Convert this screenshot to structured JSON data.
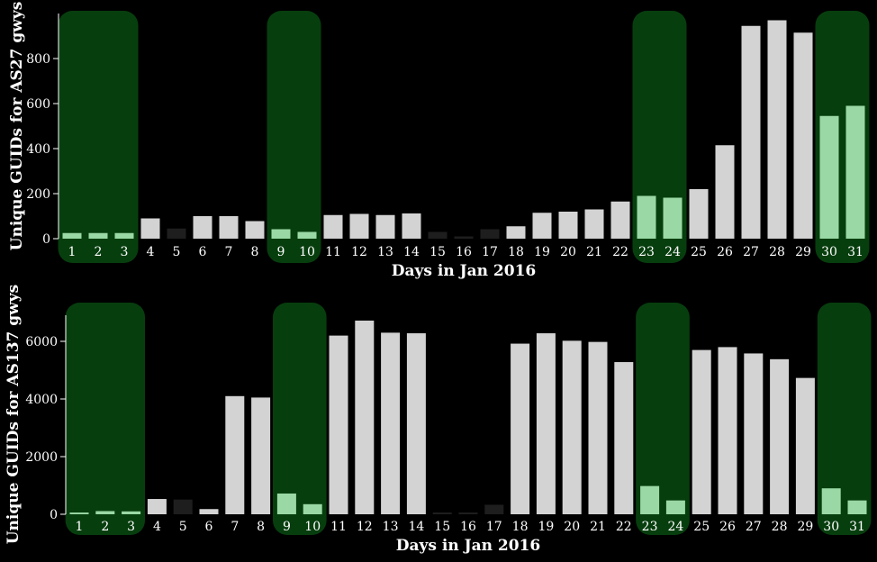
{
  "colors": {
    "background": "#000000",
    "bar_weekday": "#d3d3d3",
    "bar_weekend": "#9ad9a6",
    "bar_dark": "#1e1e1e",
    "weekend_shade": "#073e0e",
    "axis": "#ffffff"
  },
  "chart_data": [
    {
      "type": "bar",
      "xlabel": "Days in Jan 2016",
      "ylabel": "Unique GUIDs for AS27 gwys",
      "categories": [
        "1",
        "2",
        "3",
        "4",
        "5",
        "6",
        "7",
        "8",
        "9",
        "10",
        "11",
        "12",
        "13",
        "14",
        "15",
        "16",
        "17",
        "18",
        "19",
        "20",
        "21",
        "22",
        "23",
        "24",
        "25",
        "26",
        "27",
        "28",
        "29",
        "30",
        "31"
      ],
      "values": [
        25,
        25,
        25,
        90,
        45,
        100,
        100,
        78,
        42,
        30,
        105,
        110,
        105,
        112,
        30,
        10,
        42,
        55,
        115,
        120,
        130,
        165,
        190,
        182,
        220,
        415,
        945,
        970,
        915,
        545,
        590
      ],
      "weekend_days": [
        "1",
        "2",
        "3",
        "9",
        "10",
        "23",
        "24",
        "30",
        "31"
      ],
      "dark_days": [
        "5",
        "15",
        "16",
        "17"
      ],
      "yticks": [
        0,
        200,
        400,
        600,
        800
      ],
      "ylim": [
        0,
        980
      ],
      "grid": false
    },
    {
      "type": "bar",
      "xlabel": "Days in Jan 2016",
      "ylabel": "Unique GUIDs for AS137 gwys",
      "categories": [
        "1",
        "2",
        "3",
        "4",
        "5",
        "6",
        "7",
        "8",
        "9",
        "10",
        "11",
        "12",
        "13",
        "14",
        "15",
        "16",
        "17",
        "18",
        "19",
        "20",
        "21",
        "22",
        "23",
        "24",
        "25",
        "26",
        "27",
        "28",
        "29",
        "30",
        "31"
      ],
      "values": [
        60,
        110,
        100,
        530,
        510,
        180,
        4100,
        4050,
        720,
        350,
        6200,
        6720,
        6300,
        6280,
        60,
        60,
        330,
        5920,
        6280,
        6020,
        5980,
        5280,
        980,
        480,
        5700,
        5800,
        5580,
        5380,
        4730,
        900,
        480
      ],
      "weekend_days": [
        "1",
        "2",
        "3",
        "9",
        "10",
        "23",
        "24",
        "30",
        "31"
      ],
      "dark_days": [
        "5",
        "15",
        "16",
        "17"
      ],
      "yticks": [
        0,
        2000,
        4000,
        6000
      ],
      "ylim": [
        0,
        6750
      ],
      "grid": false
    }
  ]
}
